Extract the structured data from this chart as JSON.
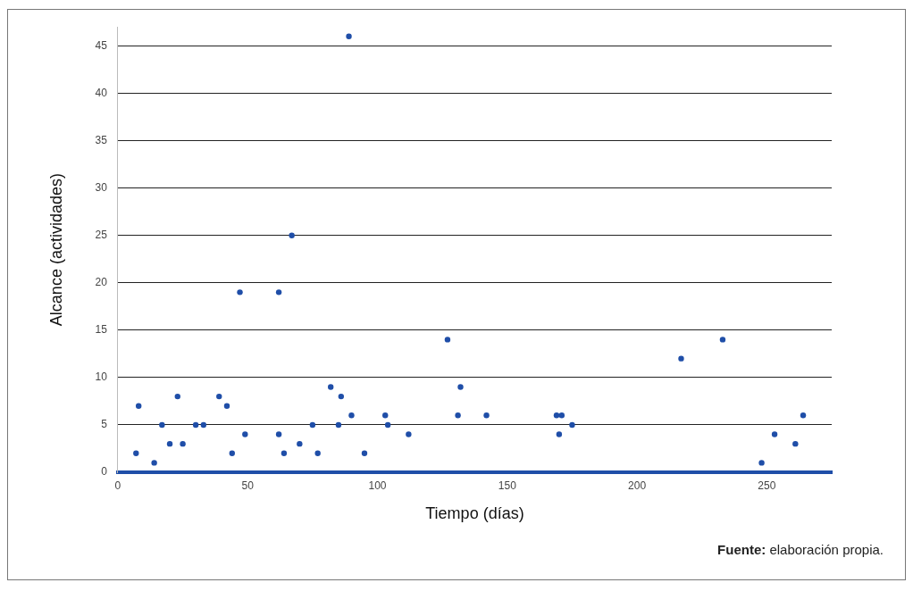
{
  "chart_data": {
    "type": "scatter",
    "xlabel": "Tiempo (días)",
    "ylabel": "Alcance (actividades)",
    "x": [
      7,
      8,
      14,
      17,
      20,
      23,
      25,
      30,
      33,
      39,
      42,
      44,
      47,
      49,
      62,
      62,
      64,
      67,
      70,
      75,
      77,
      82,
      85,
      86,
      89,
      90,
      95,
      103,
      104,
      112,
      127,
      131,
      132,
      142,
      169,
      170,
      171,
      175,
      217,
      233,
      248,
      253,
      261,
      264
    ],
    "values": [
      2,
      7,
      1,
      5,
      3,
      8,
      3,
      5,
      5,
      8,
      7,
      2,
      19,
      4,
      19,
      4,
      2,
      25,
      3,
      5,
      2,
      9,
      5,
      8,
      46,
      6,
      2,
      6,
      5,
      4,
      14,
      6,
      9,
      6,
      6,
      4,
      6,
      5,
      12,
      14,
      1,
      4,
      3,
      6
    ],
    "color": "#1f4ea8",
    "marker": "circle",
    "xlim": [
      0,
      275
    ],
    "xticks": [
      0,
      50,
      100,
      150,
      200,
      250
    ],
    "ylim": [
      0,
      47
    ],
    "yticks": [
      0,
      5,
      10,
      15,
      20,
      25,
      30,
      35,
      40,
      45
    ],
    "grid": "y",
    "legend": false,
    "annotations": [
      "Fuente: elaboración propia."
    ]
  }
}
